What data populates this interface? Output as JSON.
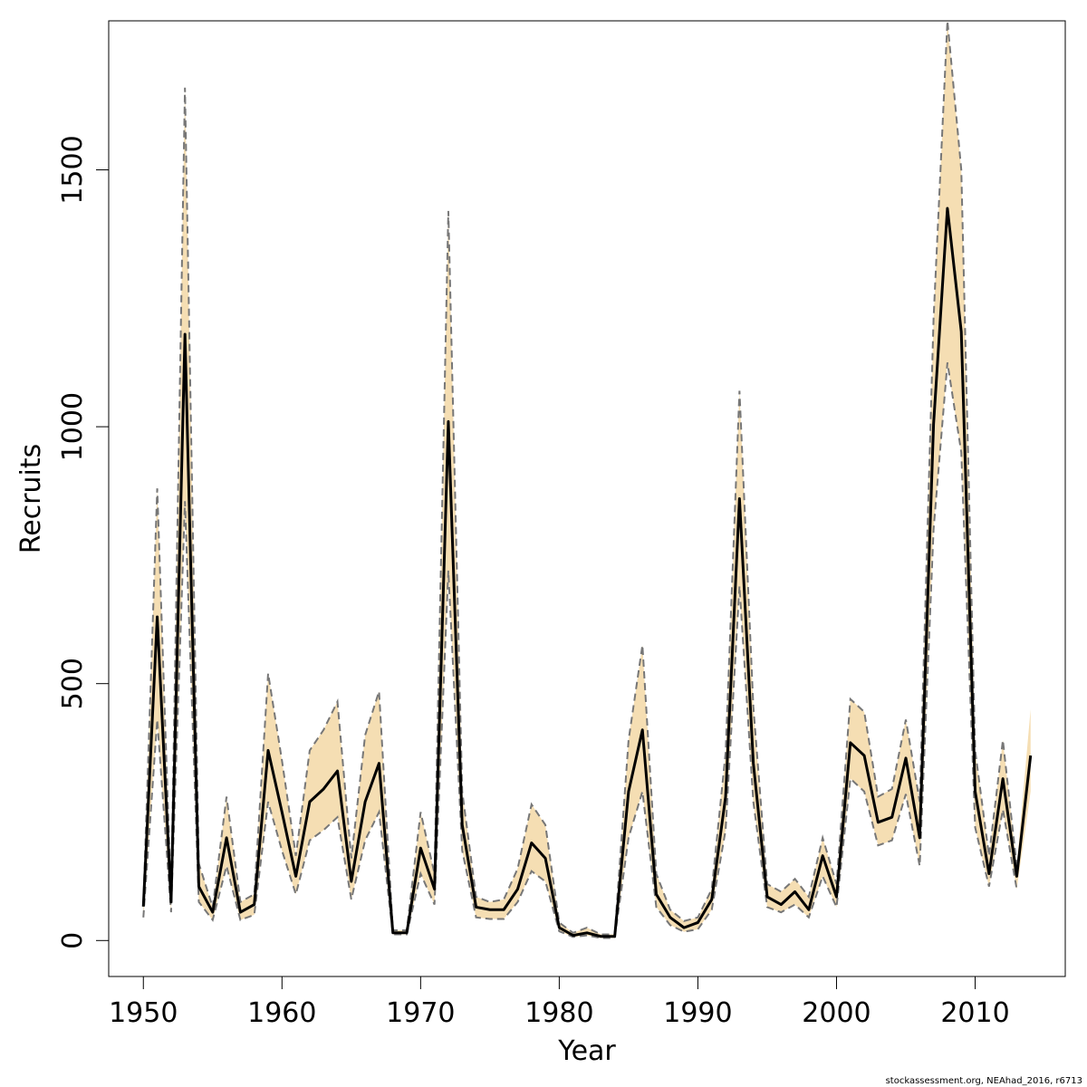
{
  "chart_data": {
    "type": "line",
    "xlabel": "Year",
    "ylabel": "Recruits",
    "footer": "stockassessment.org, NEAhad_2016, r6713",
    "xlim": [
      1947.5,
      2016.5
    ],
    "ylim": [
      -70,
      1790
    ],
    "x_ticks": [
      1950,
      1960,
      1970,
      1980,
      1990,
      2000,
      2010
    ],
    "y_ticks": [
      0,
      500,
      1000,
      1500
    ],
    "colors": {
      "band": "#f5deb3",
      "estimate": "#000000",
      "bounds": "#777777"
    },
    "x": [
      1950,
      1951,
      1952,
      1953,
      1954,
      1955,
      1956,
      1957,
      1958,
      1959,
      1960,
      1961,
      1962,
      1963,
      1964,
      1965,
      1966,
      1967,
      1968,
      1969,
      1970,
      1971,
      1972,
      1973,
      1974,
      1975,
      1976,
      1977,
      1978,
      1979,
      1980,
      1981,
      1982,
      1983,
      1984,
      1985,
      1986,
      1987,
      1988,
      1989,
      1990,
      1991,
      1992,
      1993,
      1994,
      1995,
      1996,
      1997,
      1998,
      1999,
      2000,
      2001,
      2002,
      2003,
      2004,
      2005,
      2006,
      2007,
      2008,
      2009,
      2010,
      2011,
      2012,
      2013,
      2014
    ],
    "series": [
      {
        "name": "estimate",
        "values": [
          66,
          630,
          75,
          1180,
          105,
          55,
          200,
          55,
          70,
          370,
          250,
          125,
          270,
          295,
          330,
          115,
          270,
          345,
          15,
          15,
          180,
          100,
          1010,
          225,
          65,
          60,
          60,
          100,
          190,
          160,
          25,
          10,
          15,
          8,
          8,
          290,
          410,
          90,
          45,
          25,
          35,
          80,
          280,
          860,
          345,
          85,
          70,
          95,
          60,
          165,
          85,
          385,
          360,
          230,
          240,
          355,
          200,
          1005,
          1425,
          1185,
          290,
          130,
          315,
          125,
          360
        ]
      },
      {
        "name": "upper",
        "values": [
          70,
          880,
          80,
          1660,
          150,
          65,
          280,
          75,
          90,
          520,
          350,
          165,
          370,
          410,
          465,
          160,
          400,
          485,
          20,
          20,
          250,
          130,
          1420,
          290,
          85,
          75,
          80,
          140,
          265,
          225,
          35,
          15,
          25,
          12,
          12,
          390,
          575,
          130,
          60,
          38,
          45,
          100,
          365,
          1070,
          455,
          110,
          95,
          120,
          85,
          200,
          110,
          470,
          445,
          280,
          295,
          430,
          270,
          1210,
          1790,
          1500,
          370,
          165,
          390,
          145,
          450
        ]
      },
      {
        "name": "lower",
        "values": [
          45,
          430,
          55,
          855,
          75,
          40,
          145,
          40,
          50,
          270,
          175,
          90,
          195,
          215,
          240,
          80,
          195,
          250,
          12,
          12,
          130,
          70,
          720,
          175,
          45,
          42,
          42,
          75,
          135,
          115,
          18,
          7,
          10,
          5,
          5,
          200,
          290,
          65,
          30,
          17,
          22,
          60,
          215,
          690,
          270,
          65,
          55,
          70,
          45,
          125,
          65,
          315,
          290,
          185,
          195,
          285,
          145,
          800,
          1125,
          950,
          220,
          105,
          255,
          100,
          290
        ]
      }
    ]
  }
}
